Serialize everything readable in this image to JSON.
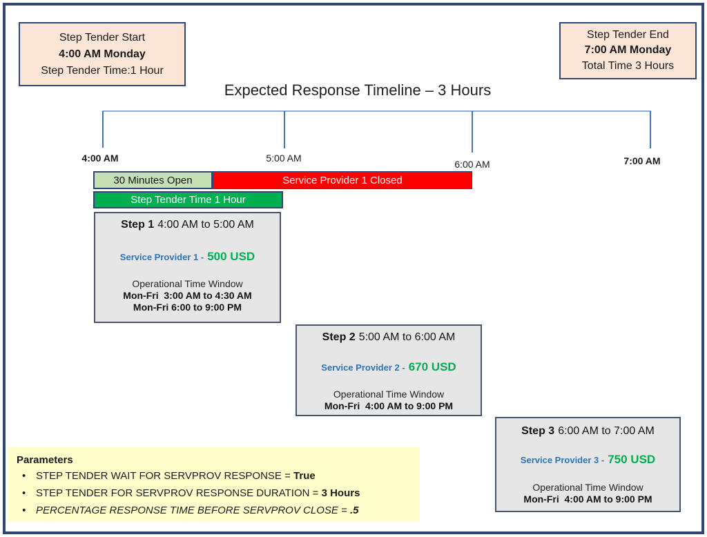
{
  "title": "Expected Response Timeline – 3 Hours",
  "infoboxes": {
    "start": {
      "line1": "Step Tender Start",
      "line2": "4:00 AM Monday",
      "line3": "Step Tender Time:1 Hour"
    },
    "end": {
      "line1": "Step Tender End",
      "line2": "7:00 AM Monday",
      "line3": "Total Time 3 Hours"
    }
  },
  "timeline": {
    "tick_labels": [
      "4:00 AM",
      "5:00 AM",
      "6:00 AM",
      "7:00 AM"
    ]
  },
  "bars": {
    "open_label": "30 Minutes Open",
    "closed_label": "Service Provider 1 Closed",
    "tender_label": "Step Tender Time 1 Hour"
  },
  "steps": [
    {
      "name": "Step 1",
      "time_range": "4:00 AM to 5:00 AM",
      "provider": "Service Provider 1 -",
      "price": "500 USD",
      "otw_title": "Operational Time Window",
      "otw_lines": [
        "Mon-Fri  3:00 AM to 4:30 AM",
        "Mon-Fri 6:00 to 9:00 PM"
      ]
    },
    {
      "name": "Step 2",
      "time_range": "5:00 AM to 6:00 AM",
      "provider": "Service Provider 2 -",
      "price": "670 USD",
      "otw_title": "Operational Time Window",
      "otw_lines": [
        "Mon-Fri  4:00 AM to 9:00 PM"
      ]
    },
    {
      "name": "Step 3",
      "time_range": "6:00 AM to 7:00 AM",
      "provider": "Service Provider 3 -",
      "price": "750 USD",
      "otw_title": "Operational Time Window",
      "otw_lines": [
        "Mon-Fri  4:00 AM to 9:00 PM"
      ]
    }
  ],
  "parameters": {
    "title": "Parameters",
    "items": [
      {
        "text": "STEP TENDER WAIT FOR SERVPROV RESPONSE = ",
        "value": "True"
      },
      {
        "text": "STEP TENDER FOR SERVPROV RESPONSE DURATION = ",
        "value": "3 Hours"
      },
      {
        "text": "PERCENTAGE RESPONSE TIME BEFORE SERVPROV CLOSE = ",
        "value": ".5"
      }
    ]
  },
  "colors": {
    "frame_border": "#2d4673",
    "peach_fill": "#fbe5d6",
    "open_bar_fill": "#c6e0b4",
    "tender_bar_fill": "#00b050",
    "closed_bar_fill": "#ff0000",
    "step_box_fill": "#e7e6e6",
    "step_box_border": "#44546a",
    "parameters_fill": "#ffffcc",
    "provider_text": "#2e75b6",
    "price_text": "#00b050",
    "timeline_line": "#8eaadb",
    "timeline_tick": "#4472c4"
  }
}
